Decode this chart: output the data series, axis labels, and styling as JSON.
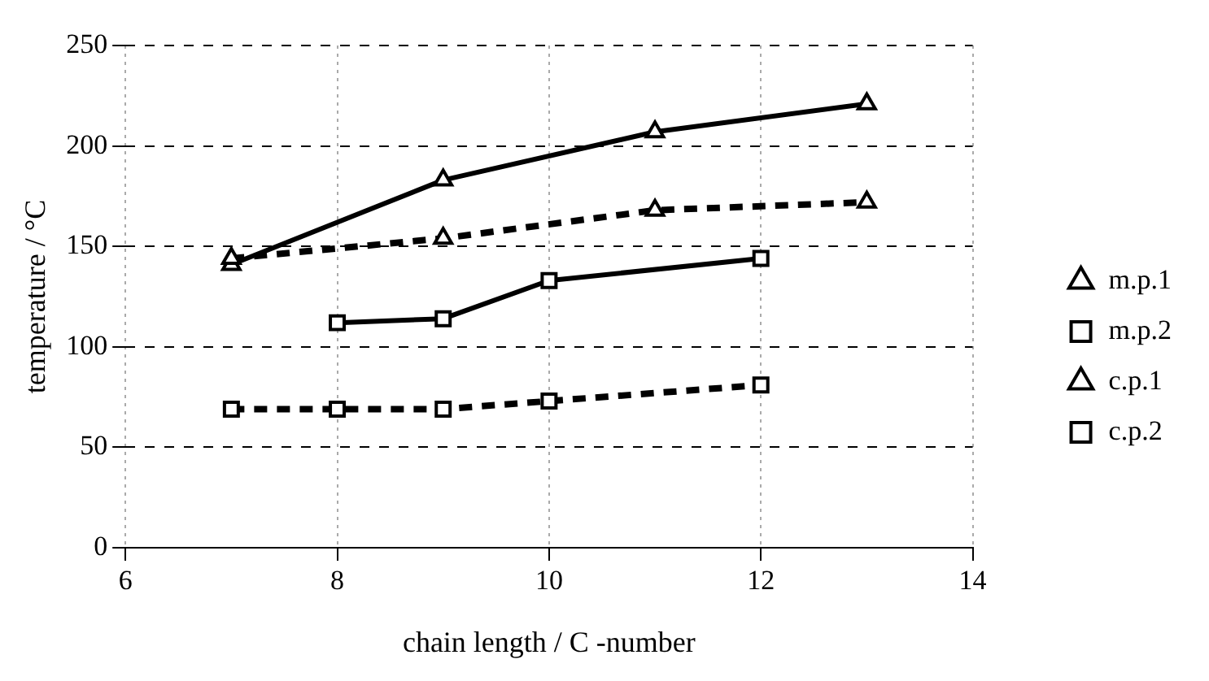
{
  "chart_data": {
    "type": "line",
    "xlabel": "chain length / C -number",
    "ylabel": "temperature / °C",
    "xlim": [
      6,
      14
    ],
    "xticks": [
      6,
      8,
      10,
      12,
      14
    ],
    "ylim": [
      0,
      250
    ],
    "yticks": [
      0,
      50,
      100,
      150,
      200,
      250
    ],
    "grid": true,
    "legend": "right",
    "series": [
      {
        "name": "m.p.1",
        "color": "#000000",
        "marker": "triangle",
        "line_style": "dashed",
        "x": [
          7,
          9,
          11,
          13
        ],
        "values": [
          144,
          154,
          168,
          172
        ]
      },
      {
        "name": "m.p.2",
        "color": "#000000",
        "marker": "square",
        "line_style": "dashed",
        "x": [
          7,
          8,
          9,
          10,
          12
        ],
        "values": [
          69,
          69,
          69,
          73,
          81
        ]
      },
      {
        "name": "c.p.1",
        "color": "#000000",
        "marker": "triangle",
        "line_style": "solid",
        "x": [
          7,
          9,
          11,
          13
        ],
        "values": [
          141,
          183,
          207,
          221
        ]
      },
      {
        "name": "c.p.2",
        "color": "#000000",
        "marker": "square",
        "line_style": "solid",
        "x": [
          8,
          9,
          10,
          12
        ],
        "values": [
          112,
          114,
          133,
          144
        ]
      }
    ]
  }
}
